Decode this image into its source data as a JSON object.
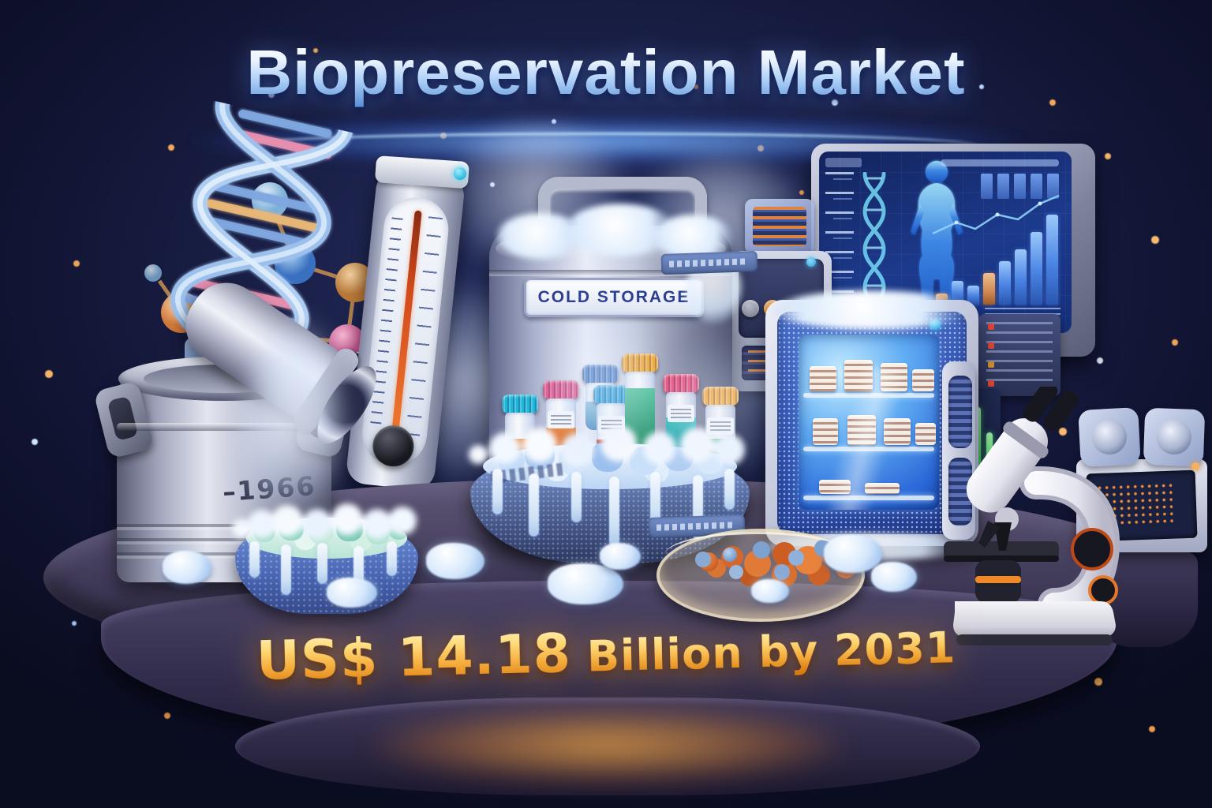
{
  "poster": {
    "title": "Biopreservation Market",
    "headline_amount": "US$ 14.18",
    "headline_suffix": " Billion by 2031"
  },
  "tank": {
    "plate_label": "COLD STORAGE"
  },
  "canister": {
    "temperature_label": "–1966"
  },
  "monitor": {
    "chart": {
      "type": "bar",
      "values": [
        14,
        30,
        24,
        40,
        55,
        70,
        92,
        114
      ],
      "orange_indexes": [
        0,
        3
      ],
      "trend": "up"
    }
  },
  "colors": {
    "background_navy": "#141a3a",
    "title_blue": "#a9cdf6",
    "gold": "#f5ab3a",
    "frost_blue": "#3558b8",
    "metal_silver": "#c3cade",
    "warm_glow": "#f0a040"
  }
}
